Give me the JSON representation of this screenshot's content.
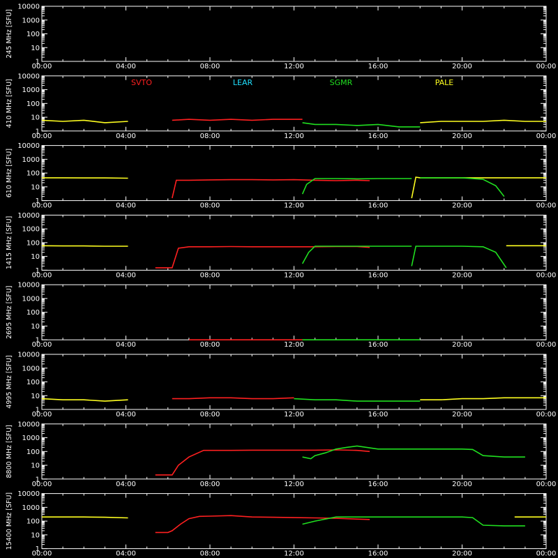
{
  "colors": {
    "background": "#000000",
    "axes": "#ffffff",
    "SVTO": "#ff2020",
    "LEAR": "#20e0ff",
    "SGMR": "#20e020",
    "PALE": "#ffff20"
  },
  "x_ticks": [
    "00:00",
    "04:00",
    "08:00",
    "12:00",
    "16:00",
    "20:00",
    "00:00"
  ],
  "y_ticks": [
    "1",
    "10",
    "100",
    "1000",
    "10000"
  ],
  "chart_data": [
    {
      "type": "line",
      "ylabel": "245 MHz [SFU]",
      "yscale": "log",
      "ylim": [
        1,
        10000
      ],
      "xlim_hours": [
        0,
        24
      ],
      "series": []
    },
    {
      "type": "line",
      "ylabel": "410 MHz [SFU]",
      "yscale": "log",
      "ylim": [
        1,
        10000
      ],
      "xlim_hours": [
        0,
        24
      ],
      "legend": [
        "SVTO",
        "LEAR",
        "SGMR",
        "PALE"
      ],
      "series": [
        {
          "name": "PALE",
          "color": "#ffff20",
          "x": [
            0,
            1,
            2,
            3,
            4.1
          ],
          "y": [
            6,
            5,
            6,
            4,
            5
          ]
        },
        {
          "name": "SVTO",
          "color": "#ff2020",
          "x": [
            6.2,
            7,
            8,
            9,
            10,
            11,
            12.4
          ],
          "y": [
            6,
            7,
            6,
            7,
            6,
            7,
            7
          ]
        },
        {
          "name": "SGMR",
          "color": "#20e020",
          "x": [
            12.4,
            13,
            14,
            15,
            16,
            17,
            18
          ],
          "y": [
            4,
            3,
            3,
            2.5,
            3,
            2,
            2
          ]
        },
        {
          "name": "PALE",
          "color": "#ffff20",
          "x": [
            18,
            19,
            20,
            21,
            22,
            23,
            24
          ],
          "y": [
            4,
            5,
            5,
            5,
            6,
            5,
            5
          ]
        }
      ]
    },
    {
      "type": "line",
      "ylabel": "610 MHz [SFU]",
      "yscale": "log",
      "ylim": [
        1,
        10000
      ],
      "xlim_hours": [
        0,
        24
      ],
      "series": [
        {
          "name": "PALE",
          "color": "#ffff20",
          "x": [
            0,
            1,
            2,
            3,
            4.1
          ],
          "y": [
            45,
            45,
            44,
            44,
            42
          ]
        },
        {
          "name": "SVTO",
          "color": "#ff2020",
          "x": [
            6.2,
            6.4,
            7,
            8,
            9,
            10,
            11,
            12,
            13,
            14,
            15,
            15.6
          ],
          "y": [
            1.5,
            30,
            30,
            32,
            33,
            33,
            32,
            33,
            30,
            28,
            30,
            28
          ]
        },
        {
          "name": "SGMR",
          "color": "#20e020",
          "x": [
            12.4,
            12.6,
            13,
            14,
            15,
            16,
            17,
            17.6
          ],
          "y": [
            3,
            15,
            40,
            40,
            38,
            40,
            40,
            40
          ]
        },
        {
          "name": "PALE",
          "color": "#ffff20",
          "x": [
            17.6,
            17.8,
            18,
            19,
            20,
            21,
            22,
            23,
            24
          ],
          "y": [
            1.5,
            50,
            45,
            45,
            45,
            45,
            45,
            45,
            45
          ]
        },
        {
          "name": "SGMR",
          "color": "#20e020",
          "x": [
            18,
            19,
            20,
            21,
            21.6,
            22
          ],
          "y": [
            45,
            45,
            45,
            35,
            12,
            2
          ]
        }
      ]
    },
    {
      "type": "line",
      "ylabel": "1415 MHz [SFU]",
      "yscale": "log",
      "ylim": [
        1,
        10000
      ],
      "xlim_hours": [
        0,
        24
      ],
      "series": [
        {
          "name": "PALE",
          "color": "#ffff20",
          "x": [
            0,
            1,
            2,
            3,
            4.1
          ],
          "y": [
            60,
            58,
            58,
            55,
            55
          ]
        },
        {
          "name": "SVTO",
          "color": "#ff2020",
          "x": [
            5.4,
            6.2,
            6.5,
            7,
            8,
            9,
            10,
            11,
            12,
            13,
            14,
            15,
            15.6
          ],
          "y": [
            1.5,
            1.5,
            40,
            50,
            50,
            52,
            50,
            50,
            50,
            50,
            52,
            52,
            45
          ]
        },
        {
          "name": "SGMR",
          "color": "#20e020",
          "x": [
            12.4,
            12.7,
            13,
            14,
            15,
            16,
            17,
            17.6
          ],
          "y": [
            3,
            20,
            55,
            55,
            55,
            55,
            55,
            55
          ]
        },
        {
          "name": "SGMR",
          "color": "#20e020",
          "x": [
            17.6,
            17.8,
            18,
            19,
            20,
            21,
            21.6,
            22.1
          ],
          "y": [
            2,
            55,
            55,
            55,
            55,
            50,
            20,
            1.5
          ]
        },
        {
          "name": "PALE",
          "color": "#ffff20",
          "x": [
            22.1,
            23,
            24
          ],
          "y": [
            60,
            60,
            60
          ]
        }
      ]
    },
    {
      "type": "line",
      "ylabel": "2695 MHz [SFU]",
      "yscale": "log",
      "ylim": [
        1,
        10000
      ],
      "xlim_hours": [
        0,
        24
      ],
      "series": [
        {
          "name": "SVTO",
          "color": "#ff2020",
          "x": [
            7,
            12.4
          ],
          "y": [
            1,
            1
          ]
        },
        {
          "name": "SGMR",
          "color": "#20e020",
          "x": [
            12.4,
            18
          ],
          "y": [
            1,
            1
          ]
        }
      ]
    },
    {
      "type": "line",
      "ylabel": "4995 MHz [SFU]",
      "yscale": "log",
      "ylim": [
        1,
        10000
      ],
      "xlim_hours": [
        0,
        24
      ],
      "series": [
        {
          "name": "PALE",
          "color": "#ffff20",
          "x": [
            0,
            1,
            2,
            3,
            4.1
          ],
          "y": [
            6,
            5,
            5,
            4,
            5
          ]
        },
        {
          "name": "SVTO",
          "color": "#ff2020",
          "x": [
            6.2,
            7,
            8,
            9,
            10,
            11,
            12
          ],
          "y": [
            6,
            6,
            7,
            7,
            6,
            6,
            7
          ]
        },
        {
          "name": "SGMR",
          "color": "#20e020",
          "x": [
            12,
            13,
            14,
            15,
            16,
            17,
            18
          ],
          "y": [
            6,
            5,
            5,
            4,
            4,
            4,
            4
          ]
        },
        {
          "name": "PALE",
          "color": "#ffff20",
          "x": [
            18,
            19,
            20,
            21,
            22,
            23,
            24
          ],
          "y": [
            5,
            5,
            6,
            6,
            7,
            7,
            7
          ]
        }
      ]
    },
    {
      "type": "line",
      "ylabel": "8800 MHz [SFU]",
      "yscale": "log",
      "ylim": [
        1,
        10000
      ],
      "xlim_hours": [
        0,
        24
      ],
      "series": [
        {
          "name": "SVTO",
          "color": "#ff2020",
          "x": [
            5.4,
            6.2,
            6.5,
            7,
            7.7,
            8,
            9,
            10,
            11,
            12,
            13,
            14,
            15,
            15.6
          ],
          "y": [
            2,
            2,
            10,
            40,
            120,
            120,
            120,
            125,
            125,
            125,
            125,
            130,
            120,
            100
          ]
        },
        {
          "name": "SGMR",
          "color": "#20e020",
          "x": [
            12.4,
            12.8,
            13,
            13.5,
            14,
            14.5,
            15,
            16,
            17,
            18,
            19,
            20,
            20.5,
            21,
            22,
            23
          ],
          "y": [
            40,
            30,
            50,
            80,
            150,
            200,
            250,
            150,
            150,
            150,
            150,
            150,
            140,
            50,
            40,
            40
          ]
        }
      ]
    },
    {
      "type": "line",
      "ylabel": "15400 MHz [SFU]",
      "yscale": "log",
      "ylim": [
        1,
        10000
      ],
      "xlim_hours": [
        0,
        24
      ],
      "series": [
        {
          "name": "PALE",
          "color": "#ffff20",
          "x": [
            0,
            1,
            2,
            3,
            4.1
          ],
          "y": [
            200,
            200,
            200,
            190,
            170
          ]
        },
        {
          "name": "SVTO",
          "color": "#ff2020",
          "x": [
            5.4,
            6,
            6.2,
            6.6,
            7,
            7.5,
            8,
            9,
            10,
            11,
            12,
            13,
            14,
            15,
            15.6
          ],
          "y": [
            15,
            15,
            20,
            60,
            150,
            220,
            230,
            250,
            200,
            190,
            180,
            170,
            160,
            140,
            130
          ]
        },
        {
          "name": "SGMR",
          "color": "#20e020",
          "x": [
            12.4,
            13,
            14,
            15,
            16,
            17,
            18,
            19,
            20,
            20.5,
            21,
            22,
            23
          ],
          "y": [
            60,
            100,
            200,
            200,
            200,
            200,
            200,
            200,
            200,
            180,
            50,
            45,
            45
          ]
        },
        {
          "name": "PALE",
          "color": "#ffff20",
          "x": [
            22.5,
            23,
            24
          ],
          "y": [
            200,
            200,
            200
          ]
        }
      ]
    }
  ]
}
